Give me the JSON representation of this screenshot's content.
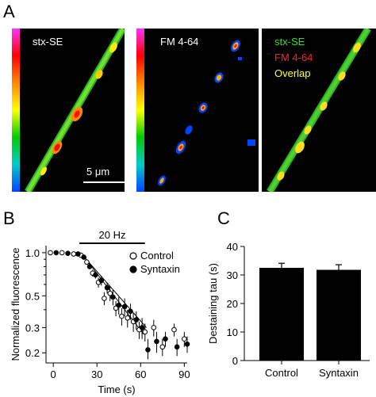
{
  "panel_labels": {
    "a": "A",
    "b": "B",
    "c": "C"
  },
  "images": {
    "panel1_label": "stx-SE",
    "panel2_label": "FM 4-64",
    "overlay_legend": [
      "stx-SE",
      "FM 4-64",
      "Overlap"
    ],
    "overlay_legend_colors": [
      "#33dd33",
      "#ff2020",
      "#ffff33"
    ],
    "scalebar_label": "5 μm",
    "colorbar_stops": [
      "#ff33ff",
      "#ff0000",
      "#ff8800",
      "#ffff00",
      "#00cc00",
      "#00cccc",
      "#0044ff"
    ]
  },
  "chart_data": [
    {
      "type": "scatter",
      "xlabel": "Time (s)",
      "ylabel": "Normalized fluorescence",
      "xlim": [
        -5,
        92
      ],
      "ylim": [
        0.17,
        1.12
      ],
      "yscale": "log",
      "xticks": [
        "0",
        "30",
        "60",
        "90"
      ],
      "yticks": [
        "1.0",
        "0.5",
        "0.3",
        "0.2"
      ],
      "annotation": "20 Hz",
      "stimulus_bar": [
        18,
        63
      ],
      "series": [
        {
          "name": "Control",
          "marker": "open-circle",
          "x": [
            -2,
            6,
            14,
            19,
            23,
            27,
            31,
            35,
            39,
            43,
            47,
            51,
            55,
            59,
            63,
            69,
            75,
            83,
            90
          ],
          "y": [
            1.0,
            1.0,
            0.98,
            0.96,
            0.86,
            0.72,
            0.62,
            0.48,
            0.52,
            0.41,
            0.36,
            0.35,
            0.33,
            0.29,
            0.28,
            0.3,
            0.22,
            0.29,
            0.25
          ],
          "err": [
            0.02,
            0.02,
            0.02,
            0.02,
            0.03,
            0.04,
            0.05,
            0.05,
            0.06,
            0.05,
            0.05,
            0.05,
            0.05,
            0.04,
            0.04,
            0.04,
            0.03,
            0.03,
            0.03
          ]
        },
        {
          "name": "Syntaxin",
          "marker": "filled-circle",
          "x": [
            2,
            10,
            17,
            21,
            25,
            29,
            33,
            37,
            41,
            45,
            49,
            53,
            57,
            61,
            65,
            71,
            77,
            85,
            92
          ],
          "y": [
            1.0,
            0.99,
            0.98,
            0.93,
            0.8,
            0.7,
            0.64,
            0.57,
            0.49,
            0.43,
            0.42,
            0.39,
            0.34,
            0.3,
            0.21,
            0.24,
            0.25,
            0.22,
            0.23
          ],
          "err": [
            0.02,
            0.02,
            0.02,
            0.03,
            0.03,
            0.04,
            0.05,
            0.05,
            0.06,
            0.06,
            0.06,
            0.05,
            0.05,
            0.05,
            0.04,
            0.04,
            0.03,
            0.03,
            0.03
          ]
        }
      ]
    },
    {
      "type": "bar",
      "ylabel": "Destaining tau (s)",
      "categories": [
        "Control",
        "Syntaxin"
      ],
      "values": [
        32.5,
        31.8
      ],
      "err": [
        1.6,
        1.8
      ],
      "ylim": [
        0,
        40
      ],
      "yticks": [
        "0",
        "10",
        "20",
        "30",
        "40"
      ]
    }
  ]
}
